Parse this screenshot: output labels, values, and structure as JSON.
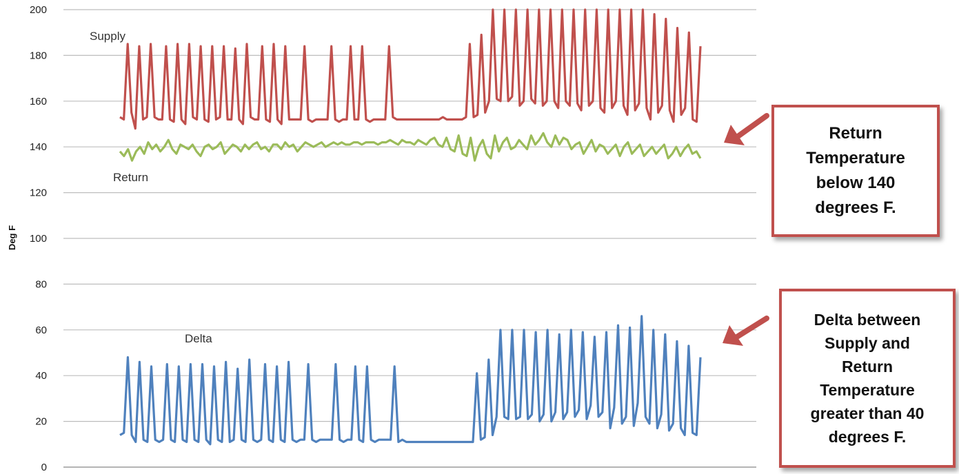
{
  "chart_data": {
    "type": "line",
    "ylabel": "Deg F",
    "xlabel": "",
    "ylim": [
      0,
      200
    ],
    "yticks": [
      0,
      20,
      40,
      60,
      80,
      100,
      120,
      140,
      160,
      180,
      200
    ],
    "grid": true,
    "series": [
      {
        "name": "Supply",
        "color": "#c0504d",
        "values": [
          153,
          152,
          185,
          155,
          148,
          184,
          152,
          153,
          185,
          153,
          152,
          152,
          184,
          152,
          151,
          185,
          152,
          150,
          185,
          153,
          152,
          184,
          152,
          151,
          184,
          152,
          153,
          184,
          152,
          152,
          183,
          152,
          150,
          185,
          153,
          152,
          152,
          184,
          152,
          151,
          185,
          152,
          150,
          184,
          152,
          152,
          152,
          152,
          184,
          152,
          151,
          152,
          152,
          152,
          152,
          184,
          152,
          151,
          152,
          152,
          184,
          152,
          152,
          184,
          152,
          151,
          152,
          152,
          152,
          152,
          184,
          153,
          152,
          152,
          152,
          152,
          152,
          152,
          152,
          152,
          152,
          152,
          152,
          152,
          153,
          152,
          152,
          152,
          152,
          152,
          153,
          185,
          153,
          154,
          189,
          155,
          160,
          200,
          161,
          160,
          200,
          160,
          162,
          200,
          158,
          160,
          200,
          161,
          159,
          200,
          158,
          160,
          200,
          160,
          157,
          200,
          160,
          158,
          200,
          159,
          156,
          200,
          158,
          160,
          200,
          157,
          155,
          200,
          157,
          160,
          200,
          158,
          154,
          200,
          156,
          159,
          200,
          157,
          152,
          198,
          155,
          158,
          196,
          156,
          151,
          192,
          154,
          157,
          190,
          152,
          151,
          184
        ],
        "label_text": "Supply"
      },
      {
        "name": "Return",
        "color": "#9bbb59",
        "values": [
          138,
          136,
          139,
          134,
          138,
          140,
          137,
          142,
          139,
          141,
          138,
          140,
          143,
          139,
          137,
          141,
          140,
          139,
          141,
          138,
          136,
          140,
          141,
          139,
          140,
          142,
          137,
          139,
          141,
          140,
          138,
          141,
          139,
          141,
          142,
          139,
          140,
          138,
          141,
          141,
          139,
          142,
          140,
          141,
          138,
          140,
          142,
          141,
          140,
          141,
          142,
          140,
          141,
          142,
          141,
          142,
          141,
          141,
          142,
          142,
          141,
          142,
          142,
          142,
          141,
          142,
          142,
          143,
          142,
          141,
          143,
          142,
          142,
          141,
          143,
          142,
          141,
          143,
          144,
          141,
          140,
          144,
          139,
          138,
          145,
          137,
          136,
          144,
          134,
          140,
          143,
          137,
          135,
          145,
          138,
          142,
          144,
          139,
          140,
          143,
          141,
          139,
          145,
          141,
          143,
          146,
          142,
          140,
          145,
          141,
          144,
          143,
          139,
          141,
          142,
          137,
          140,
          143,
          138,
          141,
          140,
          137,
          139,
          141,
          136,
          140,
          142,
          137,
          139,
          141,
          136,
          138,
          140,
          137,
          139,
          141,
          135,
          137,
          140,
          136,
          139,
          141,
          137,
          138,
          135
        ],
        "label_text": "Return"
      },
      {
        "name": "Delta",
        "color": "#4f81bd",
        "values": [
          14,
          15,
          48,
          14,
          11,
          46,
          12,
          11,
          44,
          12,
          11,
          12,
          45,
          12,
          11,
          44,
          12,
          11,
          45,
          12,
          11,
          45,
          12,
          10,
          44,
          12,
          11,
          46,
          11,
          12,
          43,
          12,
          11,
          47,
          12,
          11,
          12,
          45,
          12,
          11,
          44,
          12,
          11,
          46,
          12,
          11,
          12,
          12,
          45,
          12,
          11,
          12,
          12,
          12,
          12,
          45,
          12,
          11,
          12,
          12,
          44,
          12,
          11,
          44,
          12,
          11,
          12,
          12,
          12,
          12,
          44,
          11,
          12,
          11,
          11,
          11,
          11,
          11,
          11,
          11,
          11,
          11,
          11,
          11,
          11,
          11,
          11,
          11,
          11,
          11,
          11,
          41,
          12,
          13,
          47,
          14,
          22,
          60,
          22,
          21,
          60,
          21,
          22,
          60,
          21,
          23,
          59,
          20,
          23,
          60,
          20,
          24,
          58,
          21,
          24,
          60,
          22,
          25,
          59,
          21,
          27,
          57,
          22,
          24,
          59,
          17,
          26,
          62,
          19,
          22,
          61,
          18,
          28,
          66,
          22,
          19,
          60,
          17,
          23,
          58,
          16,
          19,
          55,
          17,
          14,
          53,
          15,
          14,
          48
        ],
        "label_text": "Delta"
      }
    ]
  },
  "callouts": {
    "return_text": "Return\nTemperature\nbelow 140\ndegrees F.",
    "delta_text": "Delta between\nSupply and\nReturn\nTemperature\ngreater than 40\ndegrees F.",
    "border_color": "#c0504d"
  }
}
